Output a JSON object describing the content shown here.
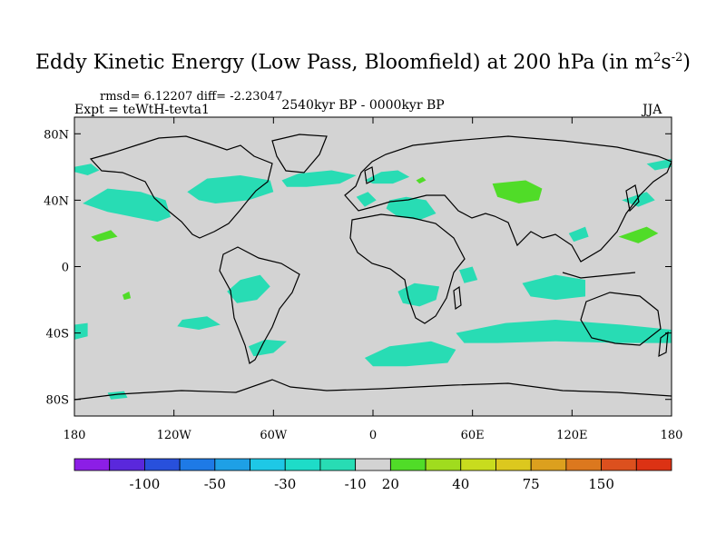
{
  "title": {
    "main": "Eddy Kinetic Energy (Low Pass, Bloomfield) at 200 hPa (in m",
    "sup1": "2",
    "mid": "s",
    "sup2": "-2",
    "close": ")"
  },
  "stats_line": "rmsd= 6.12207 diff= -2.23047",
  "experiment_label": "Expt = teWtH-tevta1",
  "period_label": "2540kyr BP - 0000kyr BP",
  "season_label": "JJA",
  "map": {
    "projection": "cylindrical-equidistant",
    "lon_range": [
      -180,
      180
    ],
    "lat_range": [
      -90,
      90
    ],
    "background_color": "#d3d3d3",
    "lat_ticks": [
      {
        "value": 80,
        "label": "80N"
      },
      {
        "value": 40,
        "label": "40N"
      },
      {
        "value": 0,
        "label": "0"
      },
      {
        "value": -40,
        "label": "40S"
      },
      {
        "value": -80,
        "label": "80S"
      }
    ],
    "lon_ticks": [
      {
        "value": -180,
        "label": "180"
      },
      {
        "value": -120,
        "label": "120W"
      },
      {
        "value": -60,
        "label": "60W"
      },
      {
        "value": 0,
        "label": "0"
      },
      {
        "value": 60,
        "label": "60E"
      },
      {
        "value": 120,
        "label": "120E"
      },
      {
        "value": 180,
        "label": "180"
      }
    ],
    "anomaly_regions": [
      {
        "name": "cyan-north-pacific",
        "category": "-10",
        "points": [
          [
            -180,
            60
          ],
          [
            -170,
            62
          ],
          [
            -165,
            58
          ],
          [
            -172,
            55
          ],
          [
            -180,
            57
          ]
        ]
      },
      {
        "name": "cyan-pacific-na-west",
        "category": "-10",
        "points": [
          [
            -175,
            38
          ],
          [
            -160,
            47
          ],
          [
            -140,
            45
          ],
          [
            -125,
            40
          ],
          [
            -122,
            30
          ],
          [
            -130,
            27
          ],
          [
            -145,
            30
          ],
          [
            -160,
            33
          ]
        ]
      },
      {
        "name": "cyan-north-america-east",
        "category": "-10",
        "points": [
          [
            -112,
            45
          ],
          [
            -100,
            53
          ],
          [
            -80,
            55
          ],
          [
            -62,
            52
          ],
          [
            -60,
            45
          ],
          [
            -75,
            40
          ],
          [
            -95,
            38
          ],
          [
            -105,
            40
          ]
        ]
      },
      {
        "name": "cyan-north-atlantic",
        "category": "-10",
        "points": [
          [
            -55,
            52
          ],
          [
            -45,
            56
          ],
          [
            -25,
            58
          ],
          [
            -10,
            55
          ],
          [
            -20,
            50
          ],
          [
            -40,
            48
          ],
          [
            -52,
            48
          ]
        ]
      },
      {
        "name": "cyan-europe-baltic",
        "category": "-10",
        "points": [
          [
            -5,
            52
          ],
          [
            5,
            57
          ],
          [
            15,
            58
          ],
          [
            22,
            54
          ],
          [
            12,
            50
          ],
          [
            0,
            50
          ]
        ]
      },
      {
        "name": "cyan-mediterranean",
        "category": "-10",
        "points": [
          [
            10,
            40
          ],
          [
            20,
            42
          ],
          [
            32,
            40
          ],
          [
            38,
            32
          ],
          [
            28,
            28
          ],
          [
            15,
            30
          ],
          [
            8,
            35
          ]
        ]
      },
      {
        "name": "cyan-sw-atlantic-wedge",
        "category": "-10",
        "points": [
          [
            -10,
            42
          ],
          [
            -3,
            45
          ],
          [
            2,
            40
          ],
          [
            -5,
            36
          ]
        ]
      },
      {
        "name": "cyan-south-america-tropics",
        "category": "-10",
        "points": [
          [
            -88,
            -15
          ],
          [
            -80,
            -8
          ],
          [
            -68,
            -5
          ],
          [
            -62,
            -12
          ],
          [
            -70,
            -20
          ],
          [
            -82,
            -22
          ]
        ]
      },
      {
        "name": "cyan-southeast-pacific",
        "category": "-10",
        "points": [
          [
            -115,
            -32
          ],
          [
            -100,
            -30
          ],
          [
            -92,
            -35
          ],
          [
            -105,
            -38
          ],
          [
            -118,
            -36
          ]
        ]
      },
      {
        "name": "cyan-southern-chile",
        "category": "-10",
        "points": [
          [
            -75,
            -48
          ],
          [
            -65,
            -44
          ],
          [
            -52,
            -45
          ],
          [
            -60,
            -52
          ],
          [
            -72,
            -54
          ]
        ]
      },
      {
        "name": "cyan-south-atlantic",
        "category": "-10",
        "points": [
          [
            -5,
            -55
          ],
          [
            10,
            -48
          ],
          [
            35,
            -45
          ],
          [
            50,
            -50
          ],
          [
            45,
            -58
          ],
          [
            20,
            -60
          ],
          [
            0,
            -60
          ]
        ]
      },
      {
        "name": "cyan-southern-africa",
        "category": "-10",
        "points": [
          [
            15,
            -15
          ],
          [
            25,
            -10
          ],
          [
            40,
            -12
          ],
          [
            38,
            -20
          ],
          [
            28,
            -24
          ],
          [
            18,
            -22
          ]
        ]
      },
      {
        "name": "cyan-indian-ocean-tropics",
        "category": "-10",
        "points": [
          [
            52,
            -2
          ],
          [
            60,
            0
          ],
          [
            63,
            -8
          ],
          [
            55,
            -10
          ]
        ]
      },
      {
        "name": "cyan-southern-ocean-band",
        "category": "-10",
        "points": [
          [
            50,
            -40
          ],
          [
            80,
            -34
          ],
          [
            110,
            -32
          ],
          [
            150,
            -35
          ],
          [
            180,
            -38
          ],
          [
            180,
            -46
          ],
          [
            150,
            -46
          ],
          [
            110,
            -45
          ],
          [
            75,
            -46
          ],
          [
            55,
            -46
          ]
        ]
      },
      {
        "name": "cyan-south-pacific-east",
        "category": "-10",
        "points": [
          [
            -180,
            -35
          ],
          [
            -172,
            -34
          ],
          [
            -172,
            -42
          ],
          [
            -180,
            -44
          ]
        ]
      },
      {
        "name": "cyan-antarctic-pacific",
        "category": "-10",
        "points": [
          [
            -160,
            -76
          ],
          [
            -150,
            -75
          ],
          [
            -148,
            -79
          ],
          [
            -158,
            -80
          ]
        ]
      },
      {
        "name": "cyan-southeast-asia",
        "category": "-10",
        "points": [
          [
            90,
            -10
          ],
          [
            110,
            -5
          ],
          [
            128,
            -8
          ],
          [
            128,
            -18
          ],
          [
            110,
            -20
          ],
          [
            95,
            -18
          ]
        ]
      },
      {
        "name": "cyan-kamchatka",
        "category": "-10",
        "points": [
          [
            150,
            40
          ],
          [
            165,
            45
          ],
          [
            170,
            40
          ],
          [
            160,
            36
          ]
        ]
      },
      {
        "name": "cyan-bering-east",
        "category": "-10",
        "points": [
          [
            165,
            62
          ],
          [
            180,
            65
          ],
          [
            180,
            60
          ],
          [
            170,
            58
          ]
        ]
      },
      {
        "name": "cyan-indochina",
        "category": "-10",
        "points": [
          [
            118,
            20
          ],
          [
            128,
            24
          ],
          [
            130,
            18
          ],
          [
            121,
            15
          ]
        ]
      },
      {
        "name": "green-central-asia",
        "category": "20",
        "points": [
          [
            72,
            50
          ],
          [
            92,
            52
          ],
          [
            102,
            47
          ],
          [
            100,
            40
          ],
          [
            88,
            38
          ],
          [
            75,
            42
          ]
        ]
      },
      {
        "name": "green-east-asia",
        "category": "20",
        "points": [
          [
            148,
            18
          ],
          [
            165,
            24
          ],
          [
            172,
            20
          ],
          [
            160,
            14
          ]
        ]
      },
      {
        "name": "green-baltic-north",
        "category": "20",
        "points": [
          [
            26,
            52
          ],
          [
            30,
            54
          ],
          [
            32,
            52
          ],
          [
            28,
            50
          ]
        ]
      },
      {
        "name": "green-east-pacific",
        "category": "20",
        "points": [
          [
            -170,
            18
          ],
          [
            -158,
            22
          ],
          [
            -154,
            18
          ],
          [
            -166,
            15
          ]
        ]
      },
      {
        "name": "green-south-pacific-speck",
        "category": "20",
        "points": [
          [
            -151,
            -17
          ],
          [
            -147,
            -15
          ],
          [
            -146,
            -19
          ],
          [
            -150,
            -20
          ]
        ]
      }
    ]
  },
  "colorbar": {
    "colors": [
      "#8c1ee6",
      "#5a28dc",
      "#2850dc",
      "#1e7ae6",
      "#1ea0e6",
      "#1ec8e6",
      "#1edcc8",
      "#28dcb4",
      "#d3d3d3",
      "#50dc28",
      "#a0dc1e",
      "#c8dc1e",
      "#dcc81e",
      "#dca01e",
      "#dc781e",
      "#dc501e",
      "#dc3214"
    ],
    "labels": [
      "-100",
      "-50",
      "-30",
      "-10",
      "20",
      "40",
      "75",
      "150"
    ]
  }
}
